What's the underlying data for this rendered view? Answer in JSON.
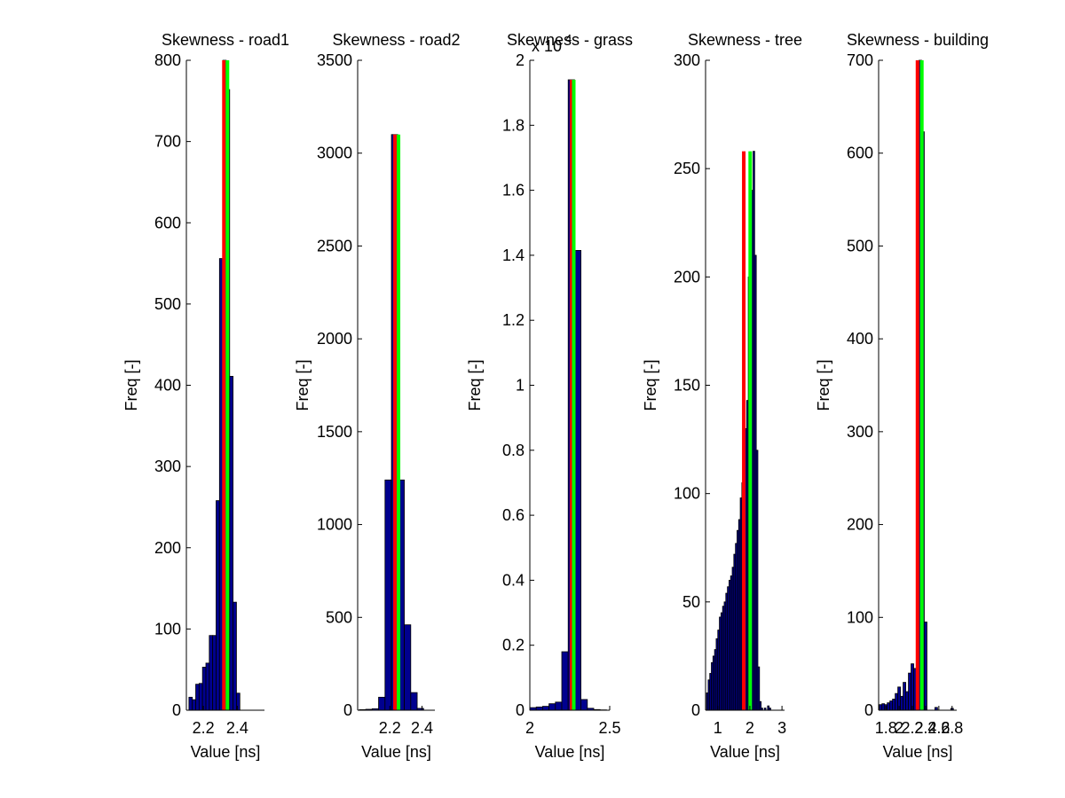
{
  "chart_data": [
    {
      "type": "histogram",
      "title": "Skewness - road1",
      "xlabel": "Value [ns]",
      "ylabel": "Freq [-]",
      "bins": [
        2.115,
        2.135,
        2.155,
        2.175,
        2.195,
        2.215,
        2.235,
        2.255,
        2.275,
        2.295,
        2.315,
        2.335,
        2.355,
        2.375,
        2.395,
        2.415
      ],
      "values": [
        16,
        13,
        32,
        33,
        53,
        58,
        92,
        92,
        258,
        556,
        800,
        764,
        411,
        133,
        21
      ],
      "color": "#00008f",
      "lines": [
        {
          "x": 2.321,
          "top": 800,
          "color": "#ff0000"
        },
        {
          "x": 2.342,
          "top": 800,
          "color": "#00ff00"
        }
      ],
      "xlim": [
        2.1,
        2.56
      ],
      "xticks": [
        2.2,
        2.4
      ],
      "ylim": [
        0,
        800
      ],
      "yticks": [
        0,
        100,
        200,
        300,
        400,
        500,
        600,
        700,
        800
      ]
    },
    {
      "type": "histogram",
      "title": "Skewness - road2",
      "xlabel": "Value [ns]",
      "ylabel": "Freq [-]",
      "bins": [
        2.01,
        2.05,
        2.09,
        2.13,
        2.17,
        2.21,
        2.25,
        2.29,
        2.33,
        2.37,
        2.41
      ],
      "values": [
        3,
        5,
        8,
        70,
        1240,
        3100,
        1240,
        460,
        95,
        10
      ],
      "color": "#00008f",
      "lines": [
        {
          "x": 2.232,
          "top": 3100,
          "color": "#ff0000"
        },
        {
          "x": 2.254,
          "top": 3100,
          "color": "#00ff00"
        }
      ],
      "xlim": [
        2.0,
        2.48
      ],
      "xticks": [
        2.2,
        2.4
      ],
      "ylim": [
        0,
        3500
      ],
      "yticks": [
        0,
        500,
        1000,
        1500,
        2000,
        2500,
        3000,
        3500
      ]
    },
    {
      "type": "histogram",
      "title": "Skewness - grass",
      "xlabel": "Value [ns]",
      "ylabel": "Freq [-]",
      "y_multiplier": "x 10",
      "y_multiplier_exponent": "4",
      "bins": [
        2.0,
        2.04,
        2.08,
        2.12,
        2.16,
        2.2,
        2.24,
        2.28,
        2.32,
        2.36,
        2.4,
        2.44,
        2.48
      ],
      "values": [
        80,
        100,
        120,
        200,
        250,
        1800,
        19400,
        14150,
        330,
        60,
        20,
        10
      ],
      "color": "#00008f",
      "lines": [
        {
          "x": 2.261,
          "top": 19400,
          "color": "#ff0000"
        },
        {
          "x": 2.275,
          "top": 19400,
          "color": "#00ff00"
        }
      ],
      "xlim": [
        2.0,
        2.5
      ],
      "xticks": [
        2,
        2.5
      ],
      "ylim": [
        0,
        20000
      ],
      "yticks": [
        0,
        {
          "value": 2000,
          "label": "0.2"
        },
        {
          "value": 4000,
          "label": "0.4"
        },
        {
          "value": 6000,
          "label": "0.6"
        },
        {
          "value": 8000,
          "label": "0.8"
        },
        {
          "value": 10000,
          "label": "1"
        },
        {
          "value": 12000,
          "label": "1.2"
        },
        {
          "value": 14000,
          "label": "1.4"
        },
        {
          "value": 16000,
          "label": "1.6"
        },
        {
          "value": 18000,
          "label": "1.8"
        },
        {
          "value": 20000,
          "label": "2"
        }
      ]
    },
    {
      "type": "histogram",
      "title": "Skewness - tree",
      "xlabel": "Value [ns]",
      "ylabel": "Freq [-]",
      "bins": [
        0.65,
        0.7,
        0.75,
        0.8,
        0.85,
        0.9,
        0.95,
        1.0,
        1.05,
        1.1,
        1.15,
        1.2,
        1.25,
        1.3,
        1.35,
        1.4,
        1.45,
        1.5,
        1.55,
        1.6,
        1.65,
        1.7,
        1.75,
        1.8,
        1.85,
        1.9,
        1.95,
        2.0,
        2.05,
        2.1,
        2.15,
        2.2,
        2.25,
        2.3,
        2.35,
        2.4,
        2.45,
        2.5,
        2.55,
        2.6,
        2.65
      ],
      "values": [
        8,
        14,
        17,
        22,
        25,
        28,
        33,
        37,
        43,
        45,
        48,
        50,
        54,
        57,
        60,
        62,
        66,
        72,
        77,
        83,
        88,
        98,
        105,
        115,
        130,
        143,
        200,
        226,
        240,
        258,
        210,
        120,
        20,
        4,
        1,
        0,
        1,
        0,
        2,
        1
      ],
      "color": "#00008f",
      "lines": [
        {
          "x": 1.81,
          "top": 258,
          "color": "#ff0000"
        },
        {
          "x": 2.01,
          "top": 258,
          "color": "#00ff00"
        }
      ],
      "xlim": [
        0.62,
        3.08
      ],
      "xticks": [
        1,
        2,
        3
      ],
      "ylim": [
        0,
        300
      ],
      "yticks": [
        0,
        50,
        100,
        150,
        200,
        250,
        300
      ]
    },
    {
      "type": "histogram",
      "title": "Skewness - building",
      "xlabel": "Value [ns]",
      "ylabel": "Freq [-]",
      "bins": [
        1.7,
        1.74,
        1.78,
        1.82,
        1.86,
        1.9,
        1.94,
        1.98,
        2.02,
        2.06,
        2.1,
        2.14,
        2.18,
        2.22,
        2.26,
        2.3,
        2.34,
        2.38,
        2.42,
        2.46,
        2.5,
        2.54,
        2.58,
        2.62,
        2.66,
        2.7,
        2.74,
        2.78,
        2.82
      ],
      "values": [
        6,
        7,
        6,
        8,
        10,
        12,
        18,
        25,
        15,
        30,
        20,
        40,
        50,
        45,
        150,
        700,
        623,
        95,
        0,
        0,
        0,
        3,
        0,
        0,
        0,
        0,
        0,
        2
      ],
      "color": "#00008f",
      "lines": [
        {
          "x": 2.277,
          "top": 700,
          "color": "#ff0000"
        },
        {
          "x": 2.343,
          "top": 700,
          "color": "#00ff00"
        }
      ],
      "xlim": [
        1.69,
        2.87
      ],
      "xticks": [
        1.8,
        2,
        2.2,
        2.4,
        2.6,
        2.8
      ],
      "ylim": [
        0,
        700
      ],
      "yticks": [
        0,
        100,
        200,
        300,
        400,
        500,
        600,
        700
      ]
    }
  ]
}
